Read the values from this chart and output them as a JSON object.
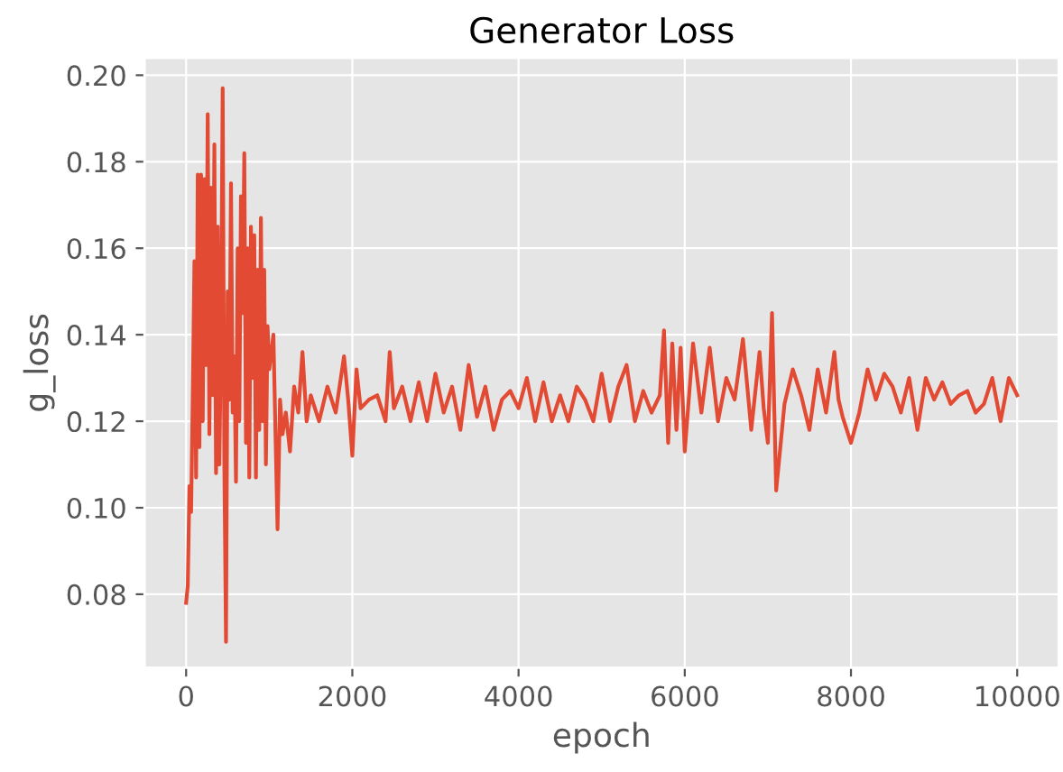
{
  "chart_data": {
    "type": "line",
    "title": "Generator Loss",
    "xlabel": "epoch",
    "ylabel": "g_loss",
    "x": [
      0,
      20,
      40,
      60,
      80,
      100,
      120,
      140,
      160,
      180,
      200,
      220,
      240,
      260,
      280,
      300,
      320,
      340,
      360,
      380,
      400,
      420,
      440,
      460,
      480,
      500,
      520,
      540,
      560,
      580,
      600,
      620,
      640,
      660,
      680,
      700,
      720,
      740,
      760,
      780,
      800,
      820,
      840,
      860,
      880,
      900,
      920,
      940,
      960,
      980,
      1000,
      1050,
      1100,
      1130,
      1160,
      1200,
      1250,
      1300,
      1350,
      1400,
      1450,
      1500,
      1600,
      1700,
      1800,
      1900,
      1950,
      2000,
      2050,
      2100,
      2200,
      2300,
      2400,
      2450,
      2500,
      2600,
      2700,
      2800,
      2900,
      3000,
      3100,
      3200,
      3300,
      3400,
      3500,
      3600,
      3700,
      3800,
      3900,
      4000,
      4100,
      4200,
      4300,
      4400,
      4500,
      4600,
      4700,
      4800,
      4900,
      5000,
      5100,
      5200,
      5300,
      5400,
      5500,
      5600,
      5700,
      5750,
      5800,
      5850,
      5900,
      5950,
      6000,
      6100,
      6200,
      6300,
      6400,
      6500,
      6600,
      6700,
      6800,
      6900,
      6950,
      7000,
      7050,
      7100,
      7200,
      7300,
      7400,
      7500,
      7600,
      7700,
      7800,
      7850,
      7900,
      8000,
      8100,
      8200,
      8300,
      8400,
      8500,
      8600,
      8700,
      8800,
      8900,
      9000,
      9100,
      9200,
      9300,
      9400,
      9500,
      9600,
      9700,
      9800,
      9900,
      10000
    ],
    "series": [
      {
        "color": "#e24a33",
        "values": [
          0.078,
          0.082,
          0.105,
          0.099,
          0.126,
          0.157,
          0.107,
          0.177,
          0.114,
          0.177,
          0.12,
          0.176,
          0.133,
          0.191,
          0.117,
          0.174,
          0.126,
          0.184,
          0.108,
          0.165,
          0.11,
          0.14,
          0.197,
          0.11,
          0.069,
          0.15,
          0.125,
          0.175,
          0.122,
          0.135,
          0.106,
          0.16,
          0.12,
          0.172,
          0.145,
          0.182,
          0.115,
          0.16,
          0.107,
          0.165,
          0.13,
          0.163,
          0.107,
          0.155,
          0.118,
          0.167,
          0.12,
          0.155,
          0.11,
          0.142,
          0.132,
          0.14,
          0.095,
          0.125,
          0.117,
          0.122,
          0.113,
          0.128,
          0.122,
          0.136,
          0.12,
          0.126,
          0.12,
          0.128,
          0.122,
          0.135,
          0.125,
          0.112,
          0.132,
          0.123,
          0.125,
          0.126,
          0.12,
          0.136,
          0.123,
          0.128,
          0.12,
          0.129,
          0.12,
          0.131,
          0.122,
          0.128,
          0.118,
          0.133,
          0.121,
          0.128,
          0.118,
          0.125,
          0.127,
          0.123,
          0.13,
          0.12,
          0.129,
          0.12,
          0.126,
          0.12,
          0.128,
          0.125,
          0.12,
          0.131,
          0.12,
          0.128,
          0.133,
          0.12,
          0.127,
          0.122,
          0.126,
          0.141,
          0.115,
          0.138,
          0.118,
          0.137,
          0.113,
          0.138,
          0.122,
          0.137,
          0.12,
          0.13,
          0.125,
          0.139,
          0.118,
          0.136,
          0.123,
          0.115,
          0.145,
          0.104,
          0.124,
          0.132,
          0.126,
          0.118,
          0.132,
          0.122,
          0.136,
          0.125,
          0.121,
          0.115,
          0.122,
          0.132,
          0.125,
          0.131,
          0.128,
          0.122,
          0.13,
          0.118,
          0.13,
          0.125,
          0.129,
          0.124,
          0.126,
          0.127,
          0.122,
          0.124,
          0.13,
          0.12,
          0.13,
          0.126
        ]
      }
    ],
    "xlim": [
      -500,
      10500
    ],
    "ylim": [
      0.063,
      0.204
    ],
    "xticks": [
      0,
      2000,
      4000,
      6000,
      8000,
      10000
    ],
    "yticks": [
      {
        "value": 0.08,
        "label": "0.08"
      },
      {
        "value": 0.1,
        "label": "0.10"
      },
      {
        "value": 0.12,
        "label": "0.12"
      },
      {
        "value": 0.14,
        "label": "0.14"
      },
      {
        "value": 0.16,
        "label": "0.16"
      },
      {
        "value": 0.18,
        "label": "0.18"
      },
      {
        "value": 0.2,
        "label": "0.20"
      }
    ],
    "grid": true,
    "line_style": "solid"
  }
}
